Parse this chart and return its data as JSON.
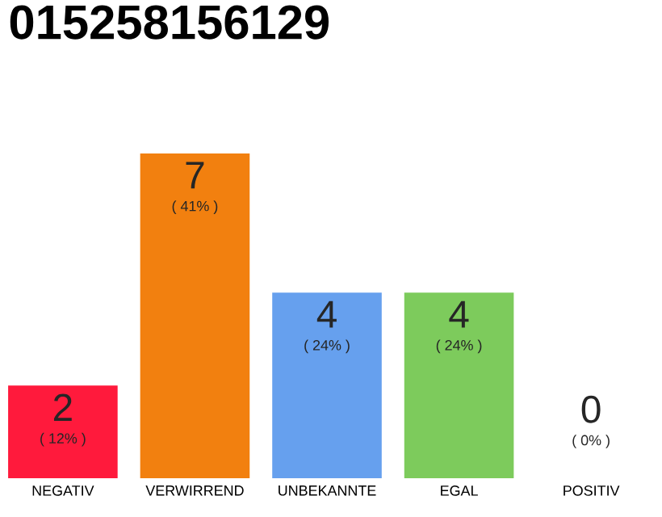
{
  "chart_data": {
    "type": "bar",
    "title": "015258156129",
    "categories": [
      "NEGATIV",
      "VERWIRREND",
      "UNBEKANNTE",
      "EGAL",
      "POSITIV"
    ],
    "values": [
      2,
      7,
      4,
      4,
      0
    ],
    "colors": [
      "#ff1a3c",
      "#f2800f",
      "#66a0ee",
      "#7dcb5c",
      "#dddddd"
    ],
    "value_labels": [
      "2",
      "7",
      "4",
      "4",
      "0"
    ],
    "annotations": [
      "( 12% )",
      "( 41% )",
      "( 24% )",
      "( 24% )",
      "( 0% )"
    ]
  }
}
